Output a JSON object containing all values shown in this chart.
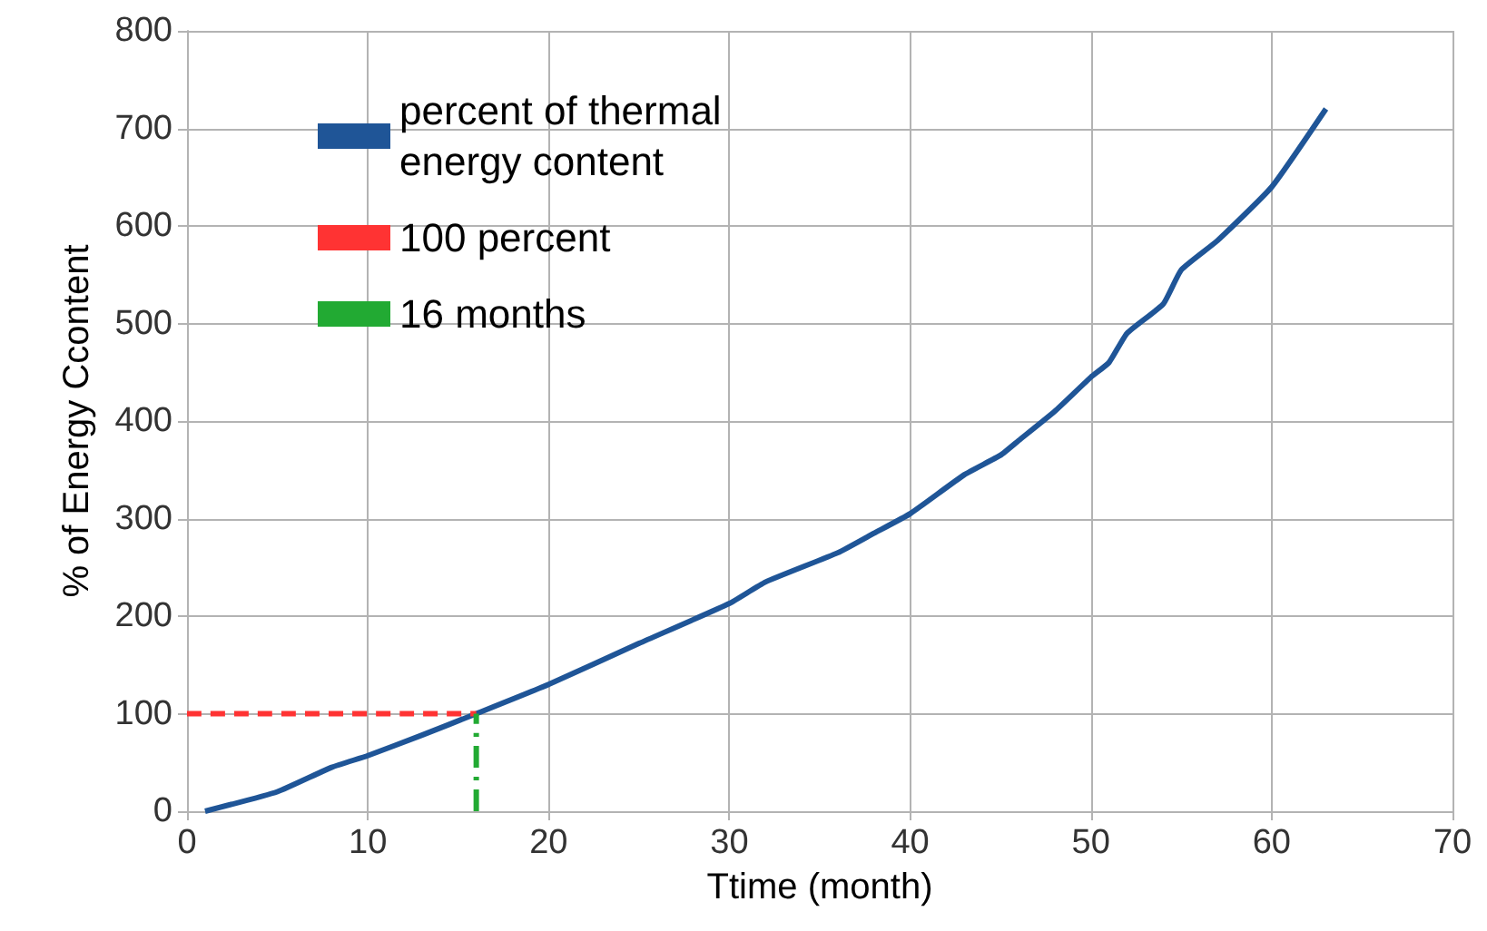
{
  "chart_data": {
    "type": "line",
    "xlabel": "Ttime (month)",
    "ylabel": "% of Energy Ccontent",
    "xlim": [
      0,
      70
    ],
    "xticks": [
      0,
      10,
      20,
      30,
      40,
      50,
      60,
      70
    ],
    "ylim": [
      0,
      800
    ],
    "yticks": [
      0,
      100,
      200,
      300,
      400,
      500,
      600,
      700,
      800
    ],
    "grid": true,
    "legend": "top left",
    "marker": "none",
    "series": [
      {
        "name": "percent of thermal energy content",
        "color": "#1f5597",
        "line_style": "solid",
        "x": [
          1,
          5,
          8,
          10,
          13,
          16,
          20,
          25,
          30,
          32,
          36,
          38,
          40,
          43,
          45,
          46,
          48,
          50,
          51,
          52,
          54,
          55,
          57,
          60,
          63
        ],
        "values": [
          0,
          20,
          45,
          57,
          78,
          100,
          130,
          172,
          213,
          235,
          265,
          285,
          305,
          345,
          365,
          380,
          410,
          445,
          460,
          490,
          520,
          555,
          585,
          640,
          720
        ]
      },
      {
        "name": "100 percent",
        "color": "#ff3333",
        "line_style": "dashed",
        "x": [
          0,
          16
        ],
        "values": [
          100,
          100
        ]
      },
      {
        "name": "16 months",
        "color": "#22aa33",
        "line_style": "dashdot",
        "x": [
          16,
          16
        ],
        "values": [
          0,
          100
        ]
      }
    ]
  }
}
